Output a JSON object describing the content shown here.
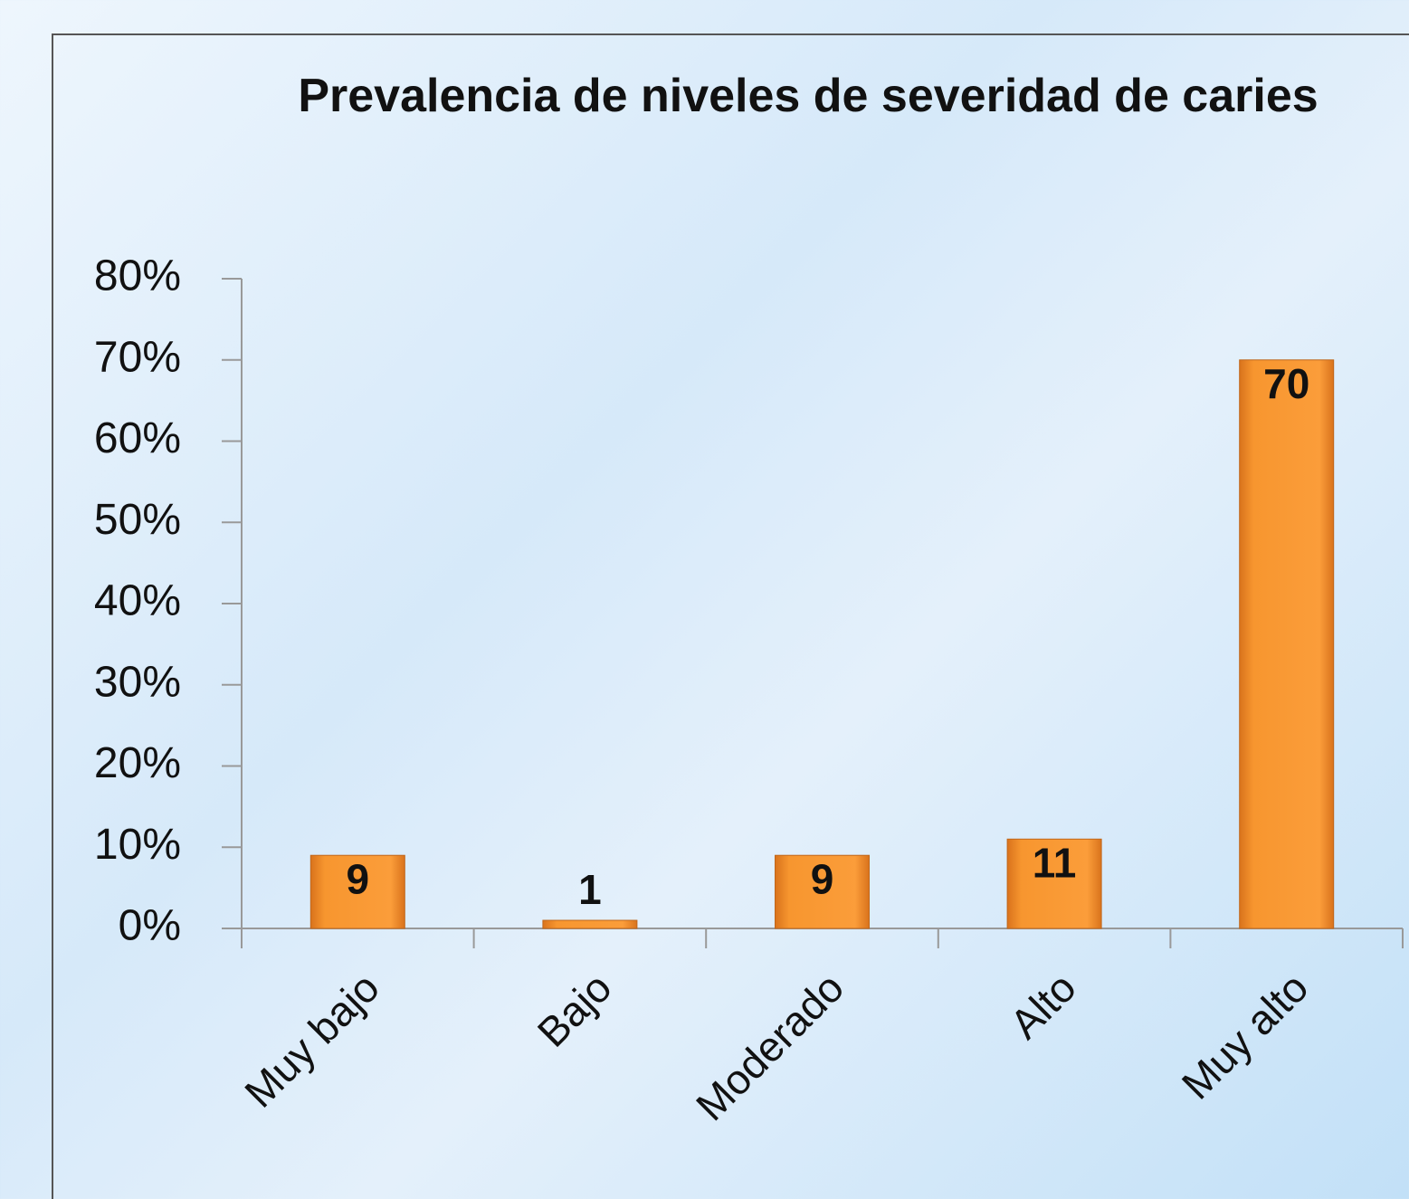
{
  "chart_data": {
    "type": "bar",
    "title": "Prevalencia de niveles de severidad de caries",
    "categories": [
      "Muy bajo",
      "Bajo",
      "Moderado",
      "Alto",
      "Muy alto"
    ],
    "values": [
      9,
      1,
      9,
      11,
      70
    ],
    "color": "#f7962f",
    "ylim": [
      0,
      80
    ],
    "yticks": [
      {
        "value": 0,
        "label": "0%"
      },
      {
        "value": 10,
        "label": "10%"
      },
      {
        "value": 20,
        "label": "20%"
      },
      {
        "value": 30,
        "label": "30%"
      },
      {
        "value": 40,
        "label": "40%"
      },
      {
        "value": 50,
        "label": "50%"
      },
      {
        "value": 60,
        "label": "60%"
      },
      {
        "value": 70,
        "label": "70%"
      },
      {
        "value": 80,
        "label": "80%"
      }
    ],
    "grid": false
  }
}
